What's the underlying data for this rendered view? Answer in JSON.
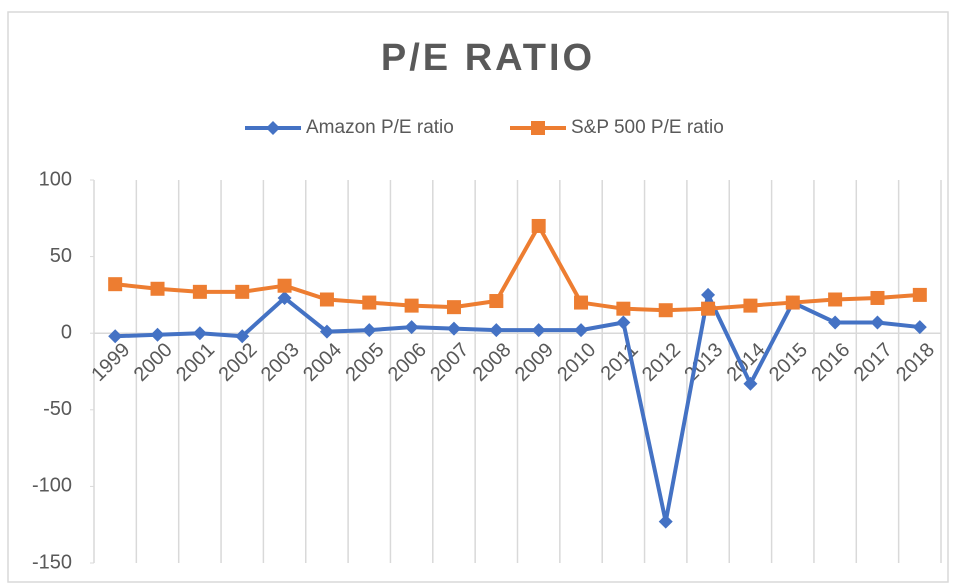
{
  "chart_data": {
    "type": "line",
    "title": "P/E RATIO",
    "categories": [
      "1999",
      "2000",
      "2001",
      "2002",
      "2003",
      "2004",
      "2005",
      "2006",
      "2007",
      "2008",
      "2009",
      "2010",
      "2011",
      "2012",
      "2013",
      "2014",
      "2015",
      "2016",
      "2017",
      "2018"
    ],
    "series": [
      {
        "name": "Amazon P/E ratio",
        "color": "#4472c4",
        "marker": "diamond",
        "values": [
          -2,
          -1,
          0,
          -2,
          23,
          1,
          2,
          4,
          3,
          2,
          2,
          2,
          7,
          -123,
          25,
          -33,
          20,
          7,
          7,
          4
        ]
      },
      {
        "name": "S&P 500 P/E ratio",
        "color": "#ed7d31",
        "marker": "square",
        "values": [
          32,
          29,
          27,
          27,
          31,
          22,
          20,
          18,
          17,
          21,
          70,
          20,
          16,
          15,
          16,
          18,
          20,
          22,
          23,
          25
        ]
      }
    ],
    "ylim": [
      -150,
      100
    ],
    "yticks": [
      -150,
      -100,
      -50,
      0,
      50,
      100
    ],
    "grid": true,
    "legend": "top"
  }
}
